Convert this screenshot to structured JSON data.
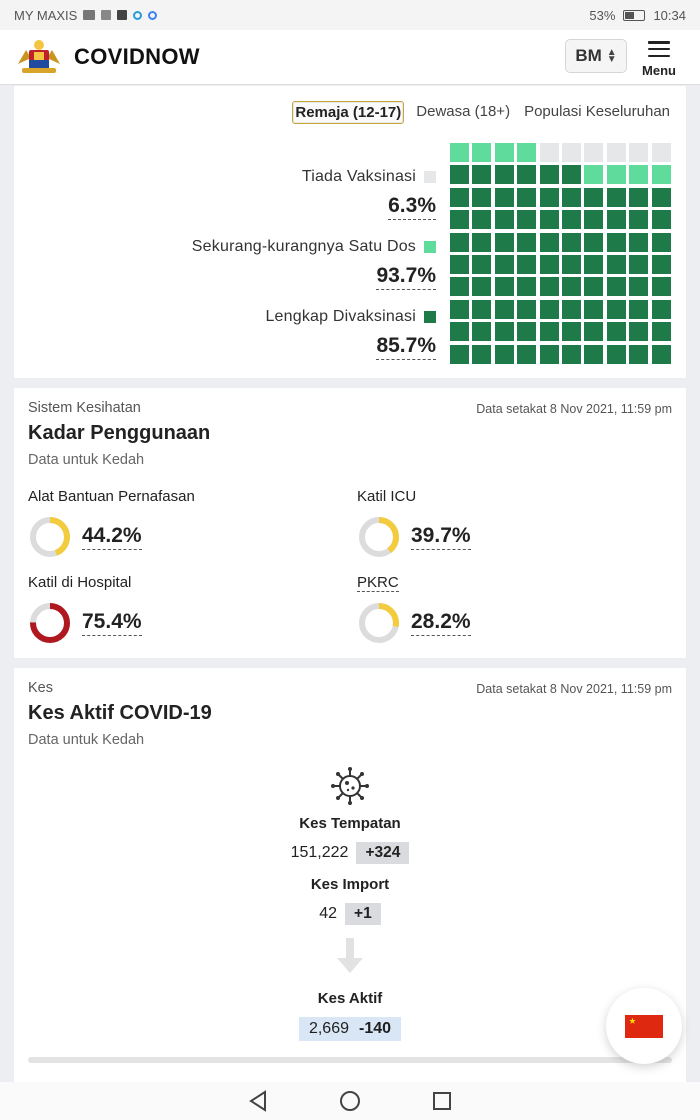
{
  "status_bar": {
    "carrier": "MY MAXIS",
    "battery": "53%",
    "time": "10:34"
  },
  "header": {
    "brand": "COVIDNOW",
    "language": "BM",
    "menu_label": "Menu"
  },
  "vaccination": {
    "tabs": [
      {
        "label": "Remaja (12-17)",
        "active": true
      },
      {
        "label": "Dewasa (18+)",
        "active": false
      },
      {
        "label": "Populasi Keseluruhan",
        "active": false
      }
    ],
    "legend": [
      {
        "label": "Tiada Vaksinasi",
        "value": "6.3%",
        "color": "#e6e7e9"
      },
      {
        "label": "Sekurang-kurangnya Satu Dos",
        "value": "93.7%",
        "color": "#5fdc9c"
      },
      {
        "label": "Lengkap Divaksinasi",
        "value": "85.7%",
        "color": "#1f7a4a"
      }
    ],
    "waffle_percent": {
      "none": 6.3,
      "partial": 8.0,
      "full": 85.7
    }
  },
  "utilisation": {
    "section_label": "Sistem Kesihatan",
    "title": "Kadar Penggunaan",
    "subtitle": "Data untuk Kedah",
    "meta": "Data setakat 8 Nov 2021, 11:59 pm",
    "items": [
      {
        "name": "Alat Bantuan Pernafasan",
        "value": "44.2%",
        "percent": 44.2,
        "color": "#f2cc3e"
      },
      {
        "name": "Katil ICU",
        "value": "39.7%",
        "percent": 39.7,
        "color": "#f2cc3e"
      },
      {
        "name": "Katil di Hospital",
        "value": "75.4%",
        "percent": 75.4,
        "color": "#b0181f"
      },
      {
        "name": "PKRC",
        "value": "28.2%",
        "percent": 28.2,
        "color": "#f2cc3e"
      }
    ]
  },
  "cases": {
    "section_label": "Kes",
    "title": "Kes Aktif COVID-19",
    "subtitle": "Data untuk Kedah",
    "meta": "Data setakat 8 Nov 2021, 11:59 pm",
    "local": {
      "label": "Kes Tempatan",
      "total": "151,222",
      "delta": "+324"
    },
    "import": {
      "label": "Kes Import",
      "total": "42",
      "delta": "+1"
    },
    "active": {
      "label": "Kes Aktif",
      "total": "2,669",
      "delta": "-140"
    }
  }
}
